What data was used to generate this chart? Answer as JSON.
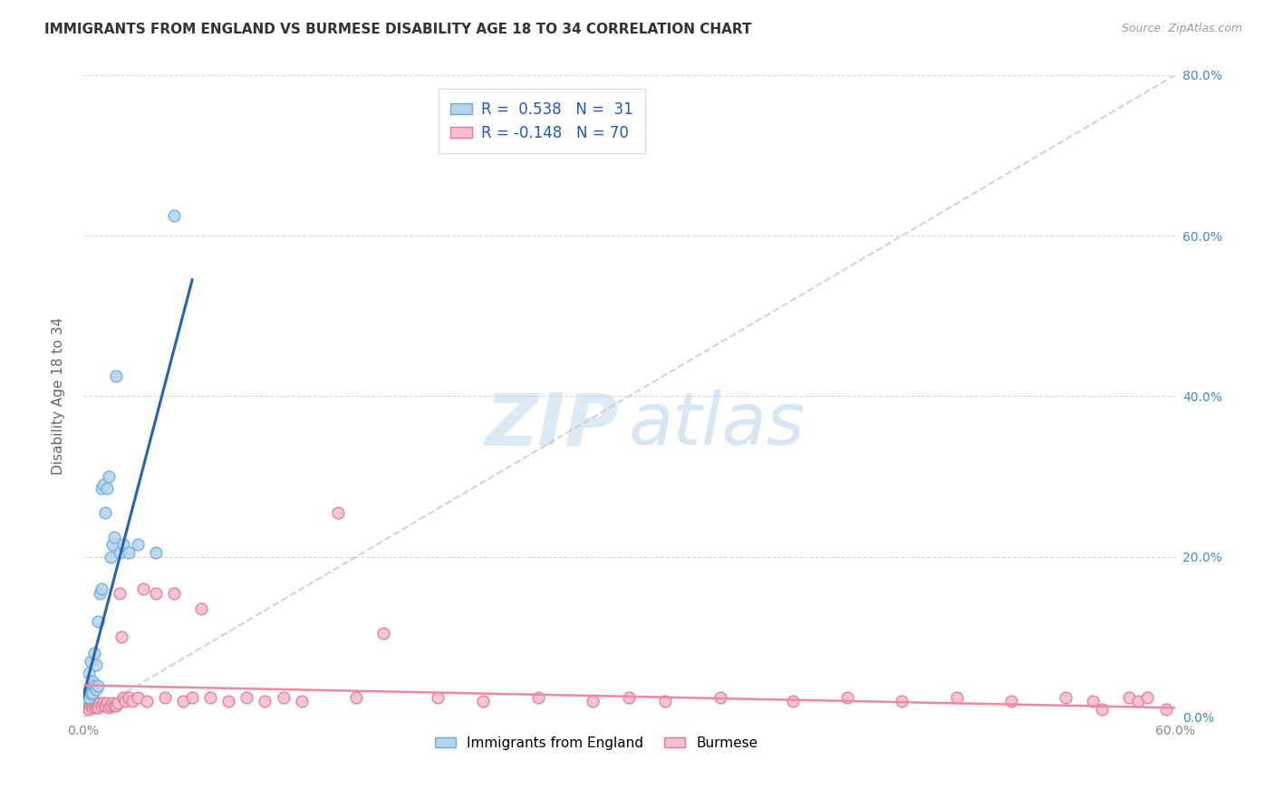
{
  "title": "IMMIGRANTS FROM ENGLAND VS BURMESE DISABILITY AGE 18 TO 34 CORRELATION CHART",
  "source": "Source: ZipAtlas.com",
  "ylabel": "Disability Age 18 to 34",
  "xlim": [
    0.0,
    0.6
  ],
  "ylim": [
    0.0,
    0.8
  ],
  "xticks": [
    0.0,
    0.1,
    0.2,
    0.3,
    0.4,
    0.5,
    0.6
  ],
  "yticks": [
    0.0,
    0.2,
    0.4,
    0.6,
    0.8
  ],
  "xtick_labels": [
    "0.0%",
    "",
    "",
    "",
    "",
    "",
    "60.0%"
  ],
  "ytick_labels": [
    "",
    "",
    "",
    "",
    ""
  ],
  "ytick_labels_right": [
    "0.0%",
    "20.0%",
    "40.0%",
    "60.0%",
    "80.0%"
  ],
  "legend_r1_val": "0.538",
  "legend_r1_n": "31",
  "legend_r2_val": "-0.148",
  "legend_r2_n": "70",
  "watermark_zip": "ZIP",
  "watermark_atlas": "atlas",
  "england_color": "#b8d4ec",
  "england_edge": "#6aaed6",
  "burmese_color": "#f5bfce",
  "burmese_edge": "#e07898",
  "england_line_color": "#2563b8",
  "burmese_line_color": "#f088a0",
  "diag_line_color": "#c8c8c8",
  "background_color": "#ffffff",
  "grid_color": "#d8d8d8",
  "title_color": "#333333",
  "ylabel_color": "#666666",
  "tick_color_left": "#888888",
  "tick_color_right": "#4488cc",
  "legend_r_color": "#2255cc",
  "england_scatter_x": [
    0.001,
    0.002,
    0.003,
    0.003,
    0.004,
    0.004,
    0.005,
    0.005,
    0.006,
    0.006,
    0.007,
    0.007,
    0.008,
    0.008,
    0.009,
    0.01,
    0.01,
    0.011,
    0.012,
    0.013,
    0.014,
    0.015,
    0.016,
    0.017,
    0.018,
    0.02,
    0.022,
    0.025,
    0.03,
    0.04,
    0.05
  ],
  "england_scatter_y": [
    0.025,
    0.03,
    0.025,
    0.055,
    0.03,
    0.07,
    0.03,
    0.045,
    0.04,
    0.08,
    0.035,
    0.065,
    0.04,
    0.12,
    0.155,
    0.16,
    0.285,
    0.29,
    0.255,
    0.285,
    0.3,
    0.2,
    0.215,
    0.225,
    0.425,
    0.205,
    0.215,
    0.205,
    0.215,
    0.205,
    0.625
  ],
  "burmese_scatter_x": [
    0.001,
    0.001,
    0.002,
    0.002,
    0.003,
    0.003,
    0.004,
    0.004,
    0.005,
    0.005,
    0.006,
    0.006,
    0.007,
    0.007,
    0.008,
    0.008,
    0.009,
    0.01,
    0.011,
    0.012,
    0.013,
    0.014,
    0.015,
    0.016,
    0.017,
    0.018,
    0.019,
    0.02,
    0.021,
    0.022,
    0.023,
    0.025,
    0.027,
    0.03,
    0.033,
    0.035,
    0.04,
    0.045,
    0.05,
    0.055,
    0.06,
    0.065,
    0.07,
    0.08,
    0.09,
    0.1,
    0.11,
    0.12,
    0.14,
    0.15,
    0.165,
    0.195,
    0.22,
    0.25,
    0.28,
    0.3,
    0.32,
    0.35,
    0.39,
    0.42,
    0.45,
    0.48,
    0.51,
    0.54,
    0.555,
    0.56,
    0.575,
    0.58,
    0.585,
    0.595
  ],
  "burmese_scatter_y": [
    0.02,
    0.015,
    0.018,
    0.012,
    0.015,
    0.01,
    0.018,
    0.015,
    0.018,
    0.012,
    0.015,
    0.02,
    0.012,
    0.018,
    0.015,
    0.012,
    0.018,
    0.015,
    0.018,
    0.015,
    0.018,
    0.012,
    0.015,
    0.018,
    0.015,
    0.015,
    0.018,
    0.155,
    0.1,
    0.025,
    0.02,
    0.025,
    0.02,
    0.025,
    0.16,
    0.02,
    0.155,
    0.025,
    0.155,
    0.02,
    0.025,
    0.135,
    0.025,
    0.02,
    0.025,
    0.02,
    0.025,
    0.02,
    0.255,
    0.025,
    0.105,
    0.025,
    0.02,
    0.025,
    0.02,
    0.025,
    0.02,
    0.025,
    0.02,
    0.025,
    0.02,
    0.025,
    0.02,
    0.025,
    0.02,
    0.01,
    0.025,
    0.02,
    0.025,
    0.01
  ],
  "eng_line_x0": 0.0,
  "eng_line_x1": 0.06,
  "eng_line_y0": 0.025,
  "eng_line_y1": 0.545,
  "bur_line_x0": 0.0,
  "bur_line_x1": 0.6,
  "bur_line_y0": 0.04,
  "bur_line_y1": 0.012
}
